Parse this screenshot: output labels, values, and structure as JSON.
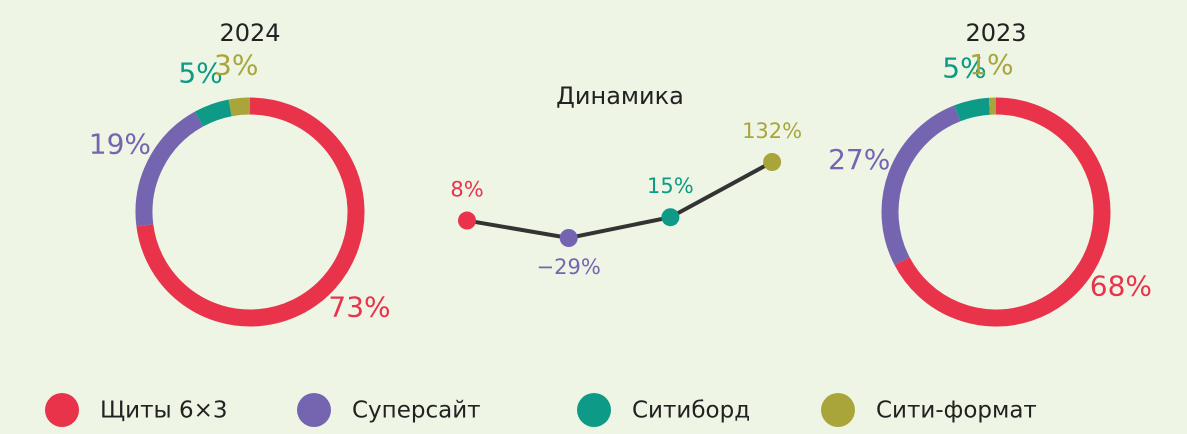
{
  "chart_data": [
    {
      "type": "donut",
      "title": "2024",
      "values": [
        73,
        19,
        5,
        3
      ],
      "value_labels": [
        "73%",
        "19%",
        "5%",
        "3%"
      ],
      "colors": [
        "#e8334a",
        "#7565b0",
        "#0d9a86",
        "#a9a53b"
      ]
    },
    {
      "type": "line",
      "title": "Динамика",
      "values": [
        8,
        -29,
        15,
        132
      ],
      "value_labels": [
        "8%",
        "−29%",
        "15%",
        "132%"
      ],
      "colors": [
        "#e8334a",
        "#7565b0",
        "#0d9a86",
        "#a9a53b"
      ],
      "line_color": "#333333"
    },
    {
      "type": "donut",
      "title": "2023",
      "values": [
        68,
        27,
        5,
        1
      ],
      "value_labels": [
        "68%",
        "27%",
        "5%",
        "1%"
      ],
      "colors": [
        "#e8334a",
        "#7565b0",
        "#0d9a86",
        "#a9a53b"
      ]
    }
  ],
  "legend": [
    {
      "name": "Щиты 6×3",
      "color": "#e8334a"
    },
    {
      "name": "Суперсайт",
      "color": "#7565b0"
    },
    {
      "name": "Ситиборд",
      "color": "#0d9a86"
    },
    {
      "name": "Сити-формат",
      "color": "#a9a53b"
    }
  ]
}
